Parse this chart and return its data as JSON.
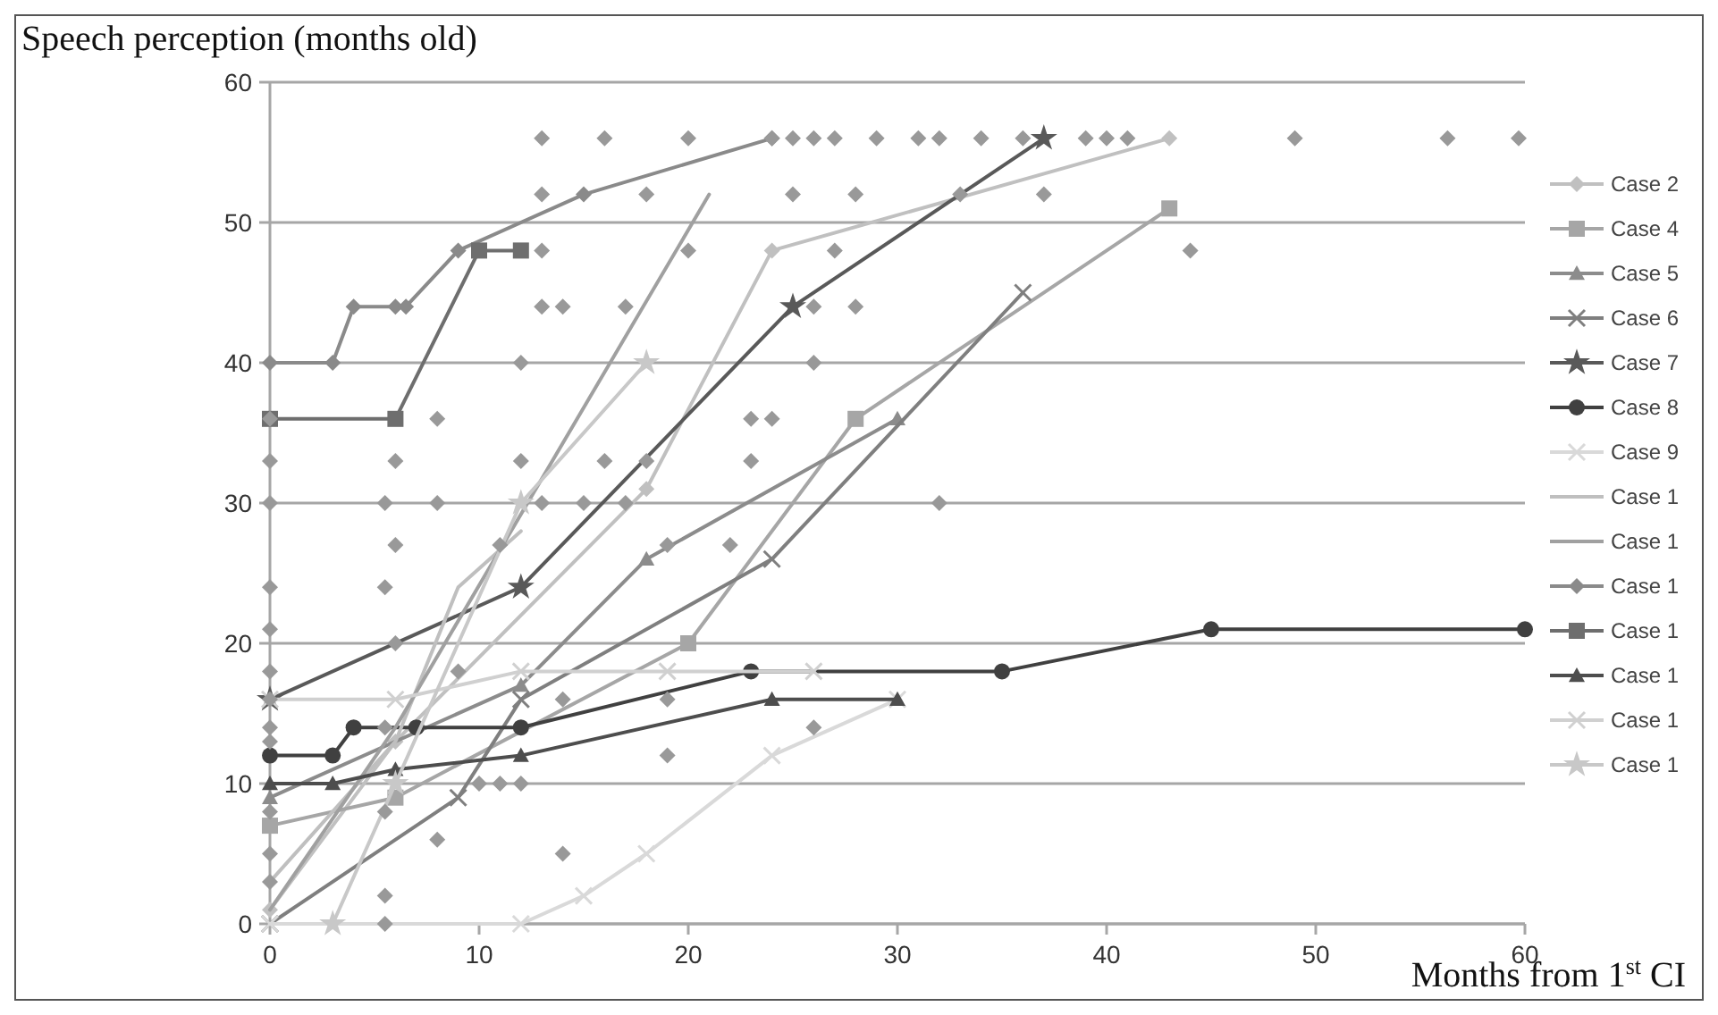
{
  "chart_data": {
    "type": "line",
    "xlabel": "Months from 1$^{st}$ CI",
    "ylabel": "Speech perception (months old)",
    "xlim": [
      0,
      60
    ],
    "xticks": [
      0,
      10,
      20,
      30,
      40,
      50,
      60
    ],
    "ylim": [
      0,
      60
    ],
    "yticks": [
      0,
      10,
      20,
      30,
      40,
      50,
      60
    ],
    "grid": "y",
    "legend": "right",
    "series": [
      {
        "name": "Case 2",
        "color": "#c0c0c0",
        "marker": "diamond",
        "x": [
          0,
          6,
          18,
          24,
          43
        ],
        "values": [
          1,
          13,
          31,
          48,
          56
        ]
      },
      {
        "name": "Case 4",
        "color": "#a6a6a6",
        "marker": "square",
        "x": [
          0,
          6,
          20,
          28,
          43
        ],
        "values": [
          7,
          9,
          20,
          36,
          51
        ]
      },
      {
        "name": "Case 5",
        "color": "#8c8c8c",
        "marker": "triangle",
        "x": [
          0,
          12,
          18,
          30
        ],
        "values": [
          9,
          17,
          26,
          36
        ]
      },
      {
        "name": "Case 6",
        "color": "#7f7f7f",
        "marker": "cross",
        "x": [
          0,
          9,
          12,
          24,
          36
        ],
        "values": [
          0,
          9,
          16,
          26,
          45
        ]
      },
      {
        "name": "Case 7",
        "color": "#595959",
        "marker": "star",
        "x": [
          0,
          12,
          25,
          37
        ],
        "values": [
          16,
          24,
          44,
          56
        ]
      },
      {
        "name": "Case 8",
        "color": "#404040",
        "marker": "circle",
        "x": [
          0,
          3,
          4,
          7,
          12,
          23,
          35,
          45,
          60
        ],
        "values": [
          12,
          12,
          14,
          14,
          14,
          18,
          18,
          21,
          21
        ]
      },
      {
        "name": "Case 9",
        "color": "#d9d9d9",
        "marker": "cross",
        "x": [
          0,
          12,
          15,
          18,
          24,
          30
        ],
        "values": [
          0,
          0,
          2,
          5,
          12,
          16
        ]
      },
      {
        "name": "Case 1",
        "color": "#bfbfbf",
        "marker": "none",
        "x": [
          0,
          6,
          9,
          12
        ],
        "values": [
          3,
          13,
          24,
          28
        ]
      },
      {
        "name": "Case 1",
        "color": "#a0a0a0",
        "marker": "none",
        "x": [
          0,
          6,
          21
        ],
        "values": [
          1,
          14,
          52
        ]
      },
      {
        "name": "Case 1",
        "color": "#8a8a8a",
        "marker": "diamond",
        "x": [
          0,
          3,
          4,
          6,
          6.5,
          9,
          15,
          24
        ],
        "values": [
          40,
          40,
          44,
          44,
          44,
          48,
          52,
          56
        ]
      },
      {
        "name": "Case 1",
        "color": "#6e6e6e",
        "marker": "square",
        "x": [
          0,
          6,
          10,
          12
        ],
        "values": [
          36,
          36,
          48,
          48
        ]
      },
      {
        "name": "Case 1",
        "color": "#4d4d4d",
        "marker": "triangle",
        "x": [
          0,
          3,
          6,
          12,
          24,
          30
        ],
        "values": [
          10,
          10,
          11,
          12,
          16,
          16
        ]
      },
      {
        "name": "Case 1",
        "color": "#d0d0d0",
        "marker": "cross",
        "x": [
          0,
          6,
          12,
          19,
          26
        ],
        "values": [
          16,
          16,
          18,
          18,
          18
        ]
      },
      {
        "name": "Case 1",
        "color": "#c8c8c8",
        "marker": "star",
        "x": [
          3,
          6,
          12,
          18
        ],
        "values": [
          0,
          10,
          30,
          40
        ]
      },
      {
        "type": "scatter",
        "color": "#999999",
        "marker": "diamond",
        "x": [
          0,
          0,
          0,
          0,
          0,
          0,
          0,
          0,
          0,
          0,
          0,
          0,
          5.5,
          5.5,
          5.5,
          5.5,
          5.5,
          5.5,
          6,
          6,
          6,
          8,
          8,
          8,
          9,
          10,
          11,
          11,
          12,
          12,
          12,
          13,
          13,
          13,
          13,
          13,
          14,
          14,
          14,
          15,
          16,
          16,
          17,
          17,
          18,
          18,
          19,
          19,
          19,
          20,
          20,
          22,
          23,
          23,
          24,
          24,
          25,
          25,
          26,
          26,
          26,
          26,
          27,
          27,
          28,
          28,
          29,
          31,
          32,
          32,
          33,
          34,
          36,
          37,
          39,
          40,
          41,
          44,
          49,
          56.3,
          59.7
        ],
        "values": [
          3,
          5,
          8,
          13,
          14,
          16,
          18,
          21,
          24,
          30,
          33,
          36,
          0,
          2,
          8,
          14,
          24,
          30,
          20,
          27,
          33,
          6,
          30,
          36,
          18,
          10,
          10,
          27,
          10,
          40,
          33,
          56,
          52,
          48,
          44,
          30,
          5,
          44,
          16,
          30,
          56,
          33,
          30,
          44,
          52,
          33,
          12,
          16,
          27,
          56,
          48,
          27,
          36,
          33,
          56,
          36,
          56,
          52,
          56,
          44,
          14,
          40,
          56,
          48,
          44,
          52,
          56,
          56,
          56,
          30,
          52,
          56,
          56,
          52,
          56,
          56,
          56,
          48,
          56,
          56,
          56
        ]
      }
    ]
  }
}
